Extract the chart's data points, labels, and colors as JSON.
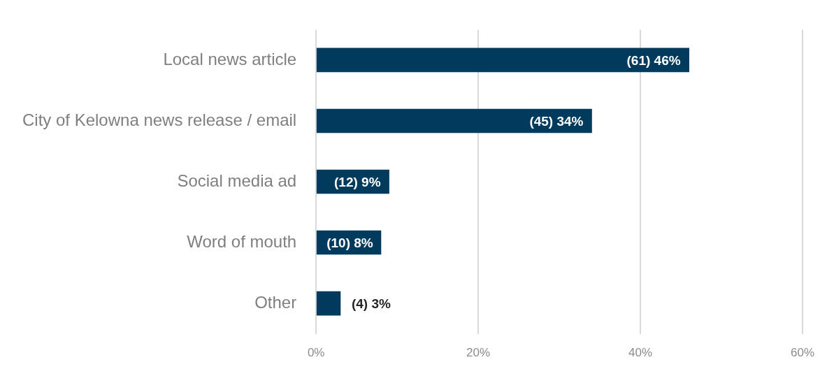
{
  "chart_data": {
    "type": "bar",
    "orientation": "horizontal",
    "categories": [
      "Local news article",
      "City of Kelowna news release / email",
      "Social media ad",
      "Word of mouth",
      "Other"
    ],
    "values": [
      46,
      34,
      9,
      8,
      3
    ],
    "value_labels": [
      "(61) 46%",
      "(45) 34%",
      "(12) 9%",
      "(10) 8%",
      "(4) 3%"
    ],
    "color": "#003a5d",
    "xlim": [
      0,
      60
    ],
    "xticks": [
      {
        "value": 0,
        "label": "0%"
      },
      {
        "value": 20,
        "label": "20%"
      },
      {
        "value": 40,
        "label": "40%"
      },
      {
        "value": 60,
        "label": "60%"
      }
    ],
    "grid": "x",
    "legend": false
  }
}
